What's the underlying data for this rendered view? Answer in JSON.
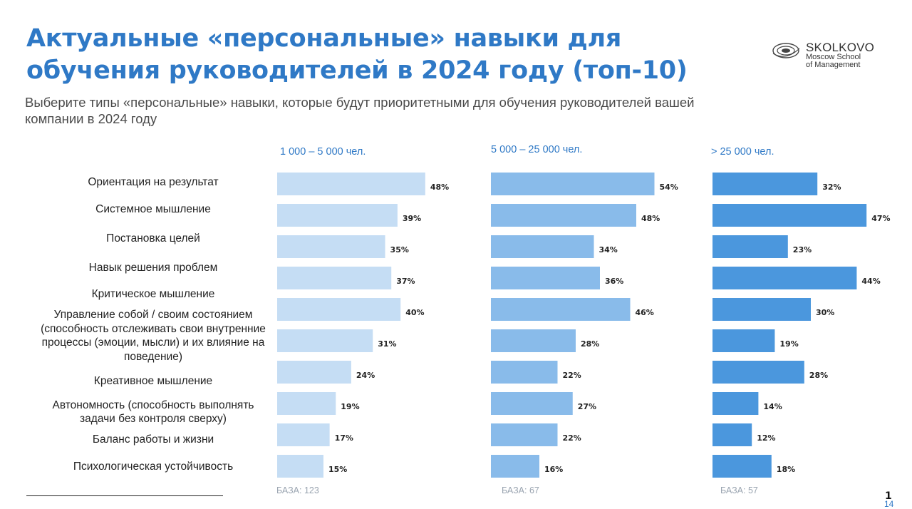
{
  "title": "Актуальные «персональные» навыки для обучения руководителей в 2024 году (топ-10)",
  "subtitle": "Выберите типы «персональные» навыки, которые будут приоритетными для обучения руководителей вашей компании в 2024 году",
  "logo": {
    "word": "SKOLKOVO",
    "line1": "Moscow School",
    "line2": "of Management"
  },
  "page_number": "1",
  "page_number_2": "14",
  "chart_data": {
    "type": "bar",
    "orientation": "horizontal",
    "categories": [
      "Ориентация на результат",
      "Системное мышление",
      "Постановка целей",
      "Навык решения проблем",
      "Критическое мышление",
      "Управление собой / своим состоянием (способность отслеживать свои внутренние процессы (эмоции, мысли) и их влияние на поведение)",
      "Креативное мышление",
      "Автономность (способность выполнять задачи без контроля сверху)",
      "Баланс работы и жизни",
      "Психологическая устойчивость"
    ],
    "series": [
      {
        "name": "1 000 – 5 000 чел.",
        "values": [
          48,
          39,
          35,
          37,
          40,
          31,
          24,
          19,
          17,
          15
        ],
        "labels": [
          "48%",
          "39%",
          "35%",
          "37%",
          "40%",
          "31%",
          "24%",
          "19%",
          "17%",
          "15%"
        ],
        "base": "БАЗА: 123",
        "color": "#c5ddf4"
      },
      {
        "name": "5 000 – 25 000 чел.",
        "values": [
          54,
          48,
          34,
          36,
          46,
          28,
          22,
          27,
          22,
          16
        ],
        "labels": [
          "54%",
          "48%",
          "34%",
          "36%",
          "46%",
          "28%",
          "22%",
          "27%",
          "22%",
          "16%"
        ],
        "base": "БАЗА: 67",
        "color": "#89bbea"
      },
      {
        "name": "> 25 000 чел.",
        "values": [
          32,
          47,
          23,
          44,
          30,
          19,
          28,
          14,
          12,
          18
        ],
        "labels": [
          "32%",
          "47%",
          "23%",
          "44%",
          "30%",
          "19%",
          "28%",
          "14%",
          "12%",
          "18%"
        ],
        "base": "БАЗА: 57",
        "color": "#4b97dd"
      }
    ],
    "unit": "%",
    "grid": false,
    "legend": "none"
  }
}
